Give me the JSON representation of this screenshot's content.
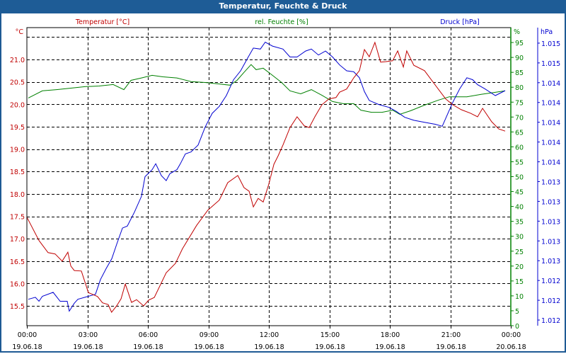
{
  "window": {
    "title": "Temperatur, Feuchte & Druck"
  },
  "chart_data": {
    "type": "line",
    "title": "Temperatur, Feuchte & Druck",
    "xlabel": "",
    "x_unit": "hours since 19.06.18 00:00",
    "xlim": [
      0,
      24
    ],
    "x_ticks": [
      {
        "h": 0,
        "time": "00:00",
        "date": "19.06.18"
      },
      {
        "h": 3,
        "time": "03:00",
        "date": "19.06.18"
      },
      {
        "h": 6,
        "time": "06:00",
        "date": "19.06.18"
      },
      {
        "h": 9,
        "time": "09:00",
        "date": "19.06.18"
      },
      {
        "h": 12,
        "time": "12:00",
        "date": "19.06.18"
      },
      {
        "h": 15,
        "time": "15:00",
        "date": "19.06.18"
      },
      {
        "h": 18,
        "time": "18:00",
        "date": "19.06.18"
      },
      {
        "h": 21,
        "time": "21:00",
        "date": "19.06.18"
      },
      {
        "h": 24,
        "time": "00:00",
        "date": "20.06.18"
      }
    ],
    "grid": true,
    "axes": {
      "temperature": {
        "label": "Temperatur [°C]",
        "unit": "°C",
        "color": "#c00000",
        "ylim": [
          15.06,
          21.71
        ],
        "ticks": [
          {
            "v": 15.5,
            "t": "15.5"
          },
          {
            "v": 16.0,
            "t": "16.0"
          },
          {
            "v": 16.5,
            "t": "16.5"
          },
          {
            "v": 17.0,
            "t": "17.0"
          },
          {
            "v": 17.5,
            "t": "17.5"
          },
          {
            "v": 18.0,
            "t": "18.0"
          },
          {
            "v": 18.5,
            "t": "18.5"
          },
          {
            "v": 19.0,
            "t": "19.0"
          },
          {
            "v": 19.5,
            "t": "19.5"
          },
          {
            "v": 20.0,
            "t": "20.0"
          },
          {
            "v": 20.5,
            "t": "20.5"
          },
          {
            "v": 21.0,
            "t": "21.0"
          }
        ],
        "gridlines": [
          15.5,
          16.0,
          16.5,
          17.0,
          17.5,
          18.0,
          18.5,
          19.0,
          19.5,
          20.0,
          20.5,
          21.0,
          21.5
        ]
      },
      "humidity": {
        "label": "rel. Feuchte [%]",
        "unit": "%",
        "color": "#008000",
        "ylim": [
          0,
          100
        ],
        "ticks": [
          {
            "v": 0,
            "t": "0"
          },
          {
            "v": 5,
            "t": "5"
          },
          {
            "v": 10,
            "t": "10"
          },
          {
            "v": 15,
            "t": "15"
          },
          {
            "v": 20,
            "t": "20"
          },
          {
            "v": 25,
            "t": "25"
          },
          {
            "v": 30,
            "t": "30"
          },
          {
            "v": 35,
            "t": "35"
          },
          {
            "v": 40,
            "t": "40"
          },
          {
            "v": 45,
            "t": "45"
          },
          {
            "v": 50,
            "t": "50"
          },
          {
            "v": 55,
            "t": "55"
          },
          {
            "v": 60,
            "t": "60"
          },
          {
            "v": 65,
            "t": "65"
          },
          {
            "v": 70,
            "t": "70"
          },
          {
            "v": 75,
            "t": "75"
          },
          {
            "v": 80,
            "t": "80"
          },
          {
            "v": 85,
            "t": "85"
          },
          {
            "v": 90,
            "t": "90"
          },
          {
            "v": 95,
            "t": "95"
          }
        ]
      },
      "pressure": {
        "label": "Druck [hPa]",
        "unit": "hPa",
        "color": "#0000d0",
        "ylim": [
          1011.843,
          1014.857
        ],
        "ticks": [
          {
            "v": 1011.9,
            "t": "1.012"
          },
          {
            "v": 1012.1,
            "t": "1.012"
          },
          {
            "v": 1012.3,
            "t": "1.012"
          },
          {
            "v": 1012.5,
            "t": "1.013"
          },
          {
            "v": 1012.7,
            "t": "1.013"
          },
          {
            "v": 1012.9,
            "t": "1.013"
          },
          {
            "v": 1013.1,
            "t": "1.013"
          },
          {
            "v": 1013.3,
            "t": "1.013"
          },
          {
            "v": 1013.5,
            "t": "1.014"
          },
          {
            "v": 1013.7,
            "t": "1.014"
          },
          {
            "v": 1013.9,
            "t": "1.014"
          },
          {
            "v": 1014.1,
            "t": "1.014"
          },
          {
            "v": 1014.3,
            "t": "1.014"
          },
          {
            "v": 1014.5,
            "t": "1.015"
          },
          {
            "v": 1014.7,
            "t": "1.015"
          }
        ]
      }
    },
    "series": [
      {
        "name": "Temperatur [°C]",
        "axis": "temperature",
        "color": "#c00000",
        "x": [
          0,
          0.6,
          1.05,
          1.4,
          1.75,
          2.03,
          2.18,
          2.35,
          2.7,
          3.05,
          3.5,
          3.75,
          4.03,
          4.2,
          4.45,
          4.67,
          4.88,
          5.19,
          5.44,
          5.79,
          6.04,
          6.32,
          6.91,
          7.37,
          7.72,
          8.42,
          8.98,
          9.54,
          9.96,
          10.46,
          10.77,
          11.02,
          11.23,
          11.47,
          11.72,
          12.0,
          12.25,
          12.46,
          12.7,
          13.05,
          13.4,
          13.75,
          14.0,
          14.28,
          14.63,
          14.98,
          15.33,
          15.51,
          15.86,
          16.21,
          16.49,
          16.74,
          16.98,
          17.26,
          17.54,
          17.79,
          18.14,
          18.39,
          18.67,
          18.84,
          19.19,
          19.72,
          20.25,
          20.77,
          21.12,
          21.54,
          22.0,
          22.35,
          22.6,
          23.05,
          23.4,
          23.72
        ],
        "y": [
          17.48,
          16.96,
          16.69,
          16.66,
          16.5,
          16.7,
          16.39,
          16.29,
          16.28,
          15.8,
          15.71,
          15.57,
          15.53,
          15.36,
          15.5,
          15.66,
          15.99,
          15.58,
          15.64,
          15.5,
          15.63,
          15.69,
          16.24,
          16.45,
          16.78,
          17.3,
          17.64,
          17.86,
          18.25,
          18.41,
          18.14,
          18.06,
          17.71,
          17.9,
          17.82,
          18.22,
          18.66,
          18.85,
          19.09,
          19.48,
          19.72,
          19.52,
          19.48,
          19.72,
          19.99,
          20.12,
          20.15,
          20.27,
          20.34,
          20.59,
          20.75,
          21.22,
          21.06,
          21.38,
          20.94,
          20.95,
          20.97,
          21.19,
          20.83,
          21.19,
          20.87,
          20.75,
          20.43,
          20.12,
          19.99,
          19.88,
          19.8,
          19.72,
          19.91,
          19.61,
          19.45,
          19.4
        ]
      },
      {
        "name": "rel. Feuchte [%]",
        "axis": "humidity",
        "color": "#008000",
        "x": [
          0.07,
          0.77,
          1.47,
          2.18,
          2.88,
          3.58,
          4.28,
          4.81,
          5.16,
          5.68,
          6.21,
          6.74,
          7.44,
          8.14,
          8.84,
          9.54,
          10.07,
          10.42,
          10.77,
          11.12,
          11.37,
          11.72,
          12.18,
          12.63,
          13.05,
          13.58,
          14.11,
          14.63,
          15.16,
          15.68,
          16.21,
          16.56,
          17.09,
          17.61,
          18.14,
          18.49,
          19.02,
          19.72,
          20.42,
          20.95,
          21.82,
          22.53,
          23.23,
          23.72
        ],
        "y": [
          76.4,
          78.8,
          79.2,
          79.7,
          80.2,
          80.4,
          80.9,
          79.2,
          82.3,
          83.1,
          84.0,
          83.5,
          83.1,
          81.9,
          81.6,
          81.1,
          80.7,
          82.3,
          85.0,
          87.6,
          85.9,
          86.4,
          84.0,
          81.6,
          78.8,
          77.8,
          79.2,
          77.3,
          75.2,
          74.5,
          74.5,
          72.3,
          71.6,
          71.6,
          72.3,
          70.9,
          72.1,
          74.0,
          75.7,
          76.8,
          76.8,
          77.6,
          78.3,
          78.8
        ]
      },
      {
        "name": "Druck [hPa]",
        "axis": "pressure",
        "color": "#0000d0",
        "x": [
          0.07,
          0.42,
          0.6,
          0.77,
          1.3,
          1.65,
          2.0,
          2.1,
          2.35,
          2.53,
          3.05,
          3.4,
          3.65,
          3.93,
          4.21,
          4.46,
          4.74,
          4.98,
          5.33,
          5.68,
          5.86,
          6.21,
          6.39,
          6.67,
          6.91,
          7.09,
          7.44,
          7.61,
          7.86,
          8.14,
          8.49,
          8.84,
          9.19,
          9.54,
          9.89,
          10.25,
          10.6,
          10.95,
          11.23,
          11.58,
          11.82,
          12.18,
          12.7,
          13.05,
          13.4,
          13.82,
          14.11,
          14.46,
          14.81,
          15.16,
          15.51,
          15.86,
          16.21,
          16.49,
          16.74,
          16.98,
          17.44,
          17.96,
          18.32,
          18.74,
          19.19,
          19.72,
          20.25,
          20.6,
          20.88,
          21.12,
          21.47,
          21.82,
          22.11,
          22.35,
          22.7,
          23.23,
          23.72
        ],
        "y": [
          1012.11,
          1012.13,
          1012.09,
          1012.14,
          1012.18,
          1012.09,
          1012.09,
          1011.99,
          1012.07,
          1012.11,
          1012.14,
          1012.16,
          1012.31,
          1012.42,
          1012.52,
          1012.67,
          1012.83,
          1012.85,
          1012.99,
          1013.15,
          1013.35,
          1013.42,
          1013.48,
          1013.36,
          1013.31,
          1013.38,
          1013.42,
          1013.48,
          1013.58,
          1013.6,
          1013.67,
          1013.85,
          1013.99,
          1014.06,
          1014.17,
          1014.33,
          1014.42,
          1014.55,
          1014.65,
          1014.64,
          1014.71,
          1014.67,
          1014.64,
          1014.56,
          1014.56,
          1014.62,
          1014.64,
          1014.58,
          1014.62,
          1014.56,
          1014.48,
          1014.42,
          1014.41,
          1014.35,
          1014.21,
          1014.12,
          1014.08,
          1014.05,
          1014.01,
          1013.95,
          1013.92,
          1013.9,
          1013.88,
          1013.86,
          1013.99,
          1014.1,
          1014.24,
          1014.35,
          1014.33,
          1014.28,
          1014.24,
          1014.17,
          1014.22
        ]
      }
    ]
  }
}
